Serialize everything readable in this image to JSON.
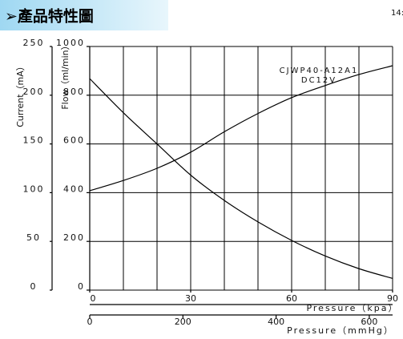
{
  "header": {
    "title": "➢產品特性圖",
    "corner": "14:"
  },
  "chart_data": {
    "type": "line",
    "y_label": "Flow（ml/min）",
    "y2_label": "Current（mA）",
    "x_label": "Pressure（kpa）",
    "x2_label": "Pressure（mmHg）",
    "annotations": [
      "CJWP40-A12A1",
      "DC12V"
    ],
    "x": [
      0,
      10,
      20,
      30,
      40,
      50,
      60,
      70,
      80,
      90
    ],
    "xlim": [
      0,
      90
    ],
    "xticks": [
      0,
      30,
      60,
      90
    ],
    "x2lim": [
      0,
      650
    ],
    "x2ticks": [
      0,
      200,
      400,
      600
    ],
    "ylim": [
      0,
      1000
    ],
    "yticks": [
      0,
      200,
      400,
      600,
      800,
      1000
    ],
    "y2lim": [
      0,
      250
    ],
    "y2ticks": [
      0,
      50,
      100,
      150,
      200,
      250
    ],
    "grid": true,
    "series": [
      {
        "name": "Flow",
        "color": "#000000",
        "values": [
          408,
          450,
          500,
          566,
          650,
          725,
          790,
          840,
          885,
          921
        ]
      },
      {
        "name": "Current",
        "color": "#000000",
        "axis": "y2",
        "values": [
          217,
          182,
          150,
          118,
          92,
          70,
          51,
          35,
          22,
          12
        ]
      }
    ]
  }
}
